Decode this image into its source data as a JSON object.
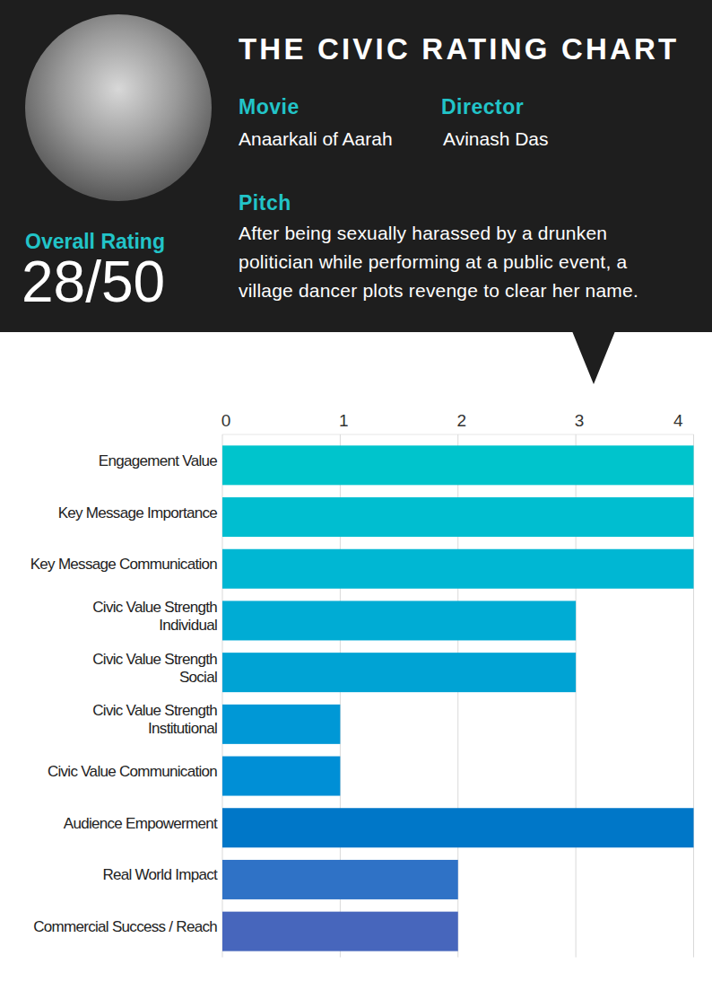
{
  "header": {
    "title": "THE CIVIC RATING CHART",
    "movie_label": "Movie",
    "movie": "Anaarkali of Aarah",
    "director_label": "Director",
    "director": "Avinash Das",
    "pitch_label": "Pitch",
    "pitch": "After being sexually harassed by a drunken politician while performing at a public event, a village dancer plots revenge to clear her name.",
    "overall_rating_label": "Overall Rating",
    "overall_rating": "28/50"
  },
  "chart_data": {
    "type": "bar",
    "orientation": "horizontal",
    "categories": [
      "Engagement Value",
      "Key Message Importance",
      "Key Message Communication",
      "Civic Value Strength\nIndividual",
      "Civic Value Strength\nSocial",
      "Civic Value Strength\nInstitutional",
      "Civic Value Communication",
      "Audience Empowerment",
      "Real World Impact",
      "Commercial Success / Reach"
    ],
    "values": [
      4,
      4,
      4,
      3,
      3,
      1,
      1,
      4,
      2,
      2
    ],
    "colors": [
      "#00c4cc",
      "#00bed0",
      "#00b7d3",
      "#00acd4",
      "#00a3d4",
      "#0098d6",
      "#008fd6",
      "#0077c8",
      "#2f72c6",
      "#4766bc"
    ],
    "xlim": [
      0,
      4
    ],
    "xticks": [
      0,
      1,
      2,
      3,
      4
    ],
    "grid": true
  }
}
